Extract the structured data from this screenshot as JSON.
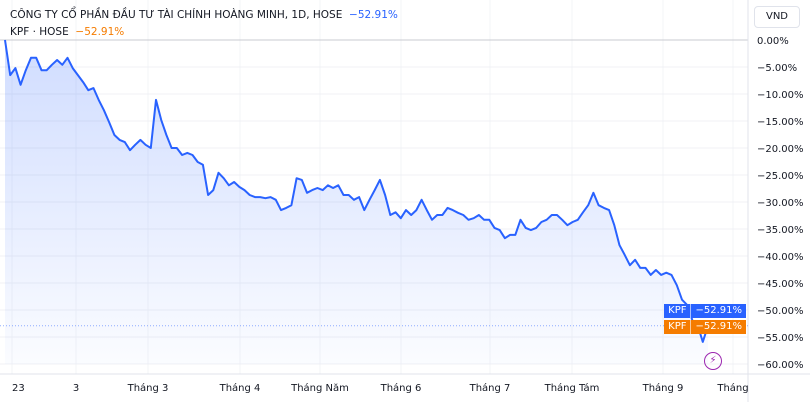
{
  "legend": {
    "title": "CÔNG TY CỔ PHẦN ĐẦU TƯ TÀI CHÍNH HOÀNG MINH, 1D, HOSE",
    "title_change": "−52.91%",
    "symbol": "KPF · HOSE",
    "symbol_change": "−52.91%"
  },
  "currency_button": "VND",
  "price_tags": [
    {
      "name": "KPF",
      "value": "−52.91%",
      "color": "#2962ff"
    },
    {
      "name": "KPF",
      "value": "−52.91%",
      "color": "#f57c00"
    }
  ],
  "event_icon": "lightning-icon",
  "chart_data": {
    "type": "area",
    "title": "",
    "ylim": [
      -60,
      0
    ],
    "y_ticks": [
      "0.00%",
      "−5.00%",
      "−10.00%",
      "−15.00%",
      "−20.00%",
      "−25.00%",
      "−30.00%",
      "−35.00%",
      "−40.00%",
      "−45.00%",
      "−50.00%",
      "−55.00%",
      "−60.00%"
    ],
    "x_ticks": [
      "23",
      "3",
      "Tháng 3",
      "Tháng 4",
      "Tháng Năm",
      "Tháng 6",
      "Tháng 7",
      "Tháng Tám",
      "Tháng 9",
      "Tháng"
    ],
    "grid": true,
    "line_color": "#2962ff",
    "series": [
      {
        "values": [
          0,
          -6.5,
          -5.2,
          -8.3,
          -5.6,
          -3.3,
          -3.3,
          -5.6,
          -5.6,
          -4.6,
          -3.7,
          -4.6,
          -3.3,
          -5.2,
          -6.5,
          -7.8,
          -9.3,
          -8.9,
          -11.1,
          -13.0,
          -15.2,
          -17.6,
          -18.5,
          -18.9,
          -20.4,
          -19.4,
          -18.5,
          -19.4,
          -20.0,
          -11.1,
          -14.8,
          -17.6,
          -20.0,
          -20.0,
          -21.3,
          -20.9,
          -21.3,
          -22.6,
          -23.1,
          -28.7,
          -27.8,
          -24.6,
          -25.6,
          -26.9,
          -26.3,
          -27.2,
          -27.8,
          -28.7,
          -29.1,
          -29.1,
          -29.3,
          -29.1,
          -29.6,
          -31.5,
          -31.1,
          -30.6,
          -25.6,
          -25.9,
          -28.3,
          -27.8,
          -27.4,
          -27.8,
          -26.9,
          -27.4,
          -26.9,
          -28.7,
          -28.7,
          -29.6,
          -29.1,
          -31.5,
          -29.6,
          -27.8,
          -25.9,
          -28.7,
          -32.4,
          -31.9,
          -33.0,
          -31.5,
          -32.4,
          -31.5,
          -29.6,
          -31.5,
          -33.3,
          -32.4,
          -32.4,
          -31.1,
          -31.5,
          -32.0,
          -32.4,
          -33.3,
          -33.0,
          -32.4,
          -33.3,
          -33.3,
          -34.8,
          -35.2,
          -36.7,
          -36.1,
          -36.1,
          -33.3,
          -34.8,
          -35.2,
          -34.8,
          -33.7,
          -33.3,
          -32.4,
          -32.4,
          -33.3,
          -34.3,
          -33.7,
          -33.3,
          -31.9,
          -30.6,
          -28.3,
          -30.6,
          -31.1,
          -31.5,
          -34.3,
          -38.0,
          -39.8,
          -41.7,
          -40.7,
          -42.2,
          -42.2,
          -43.5,
          -42.6,
          -43.5,
          -43.1,
          -43.5,
          -45.4,
          -48.1,
          -49.1,
          -51.9,
          -52.8,
          -55.9,
          -52.91
        ]
      }
    ]
  }
}
